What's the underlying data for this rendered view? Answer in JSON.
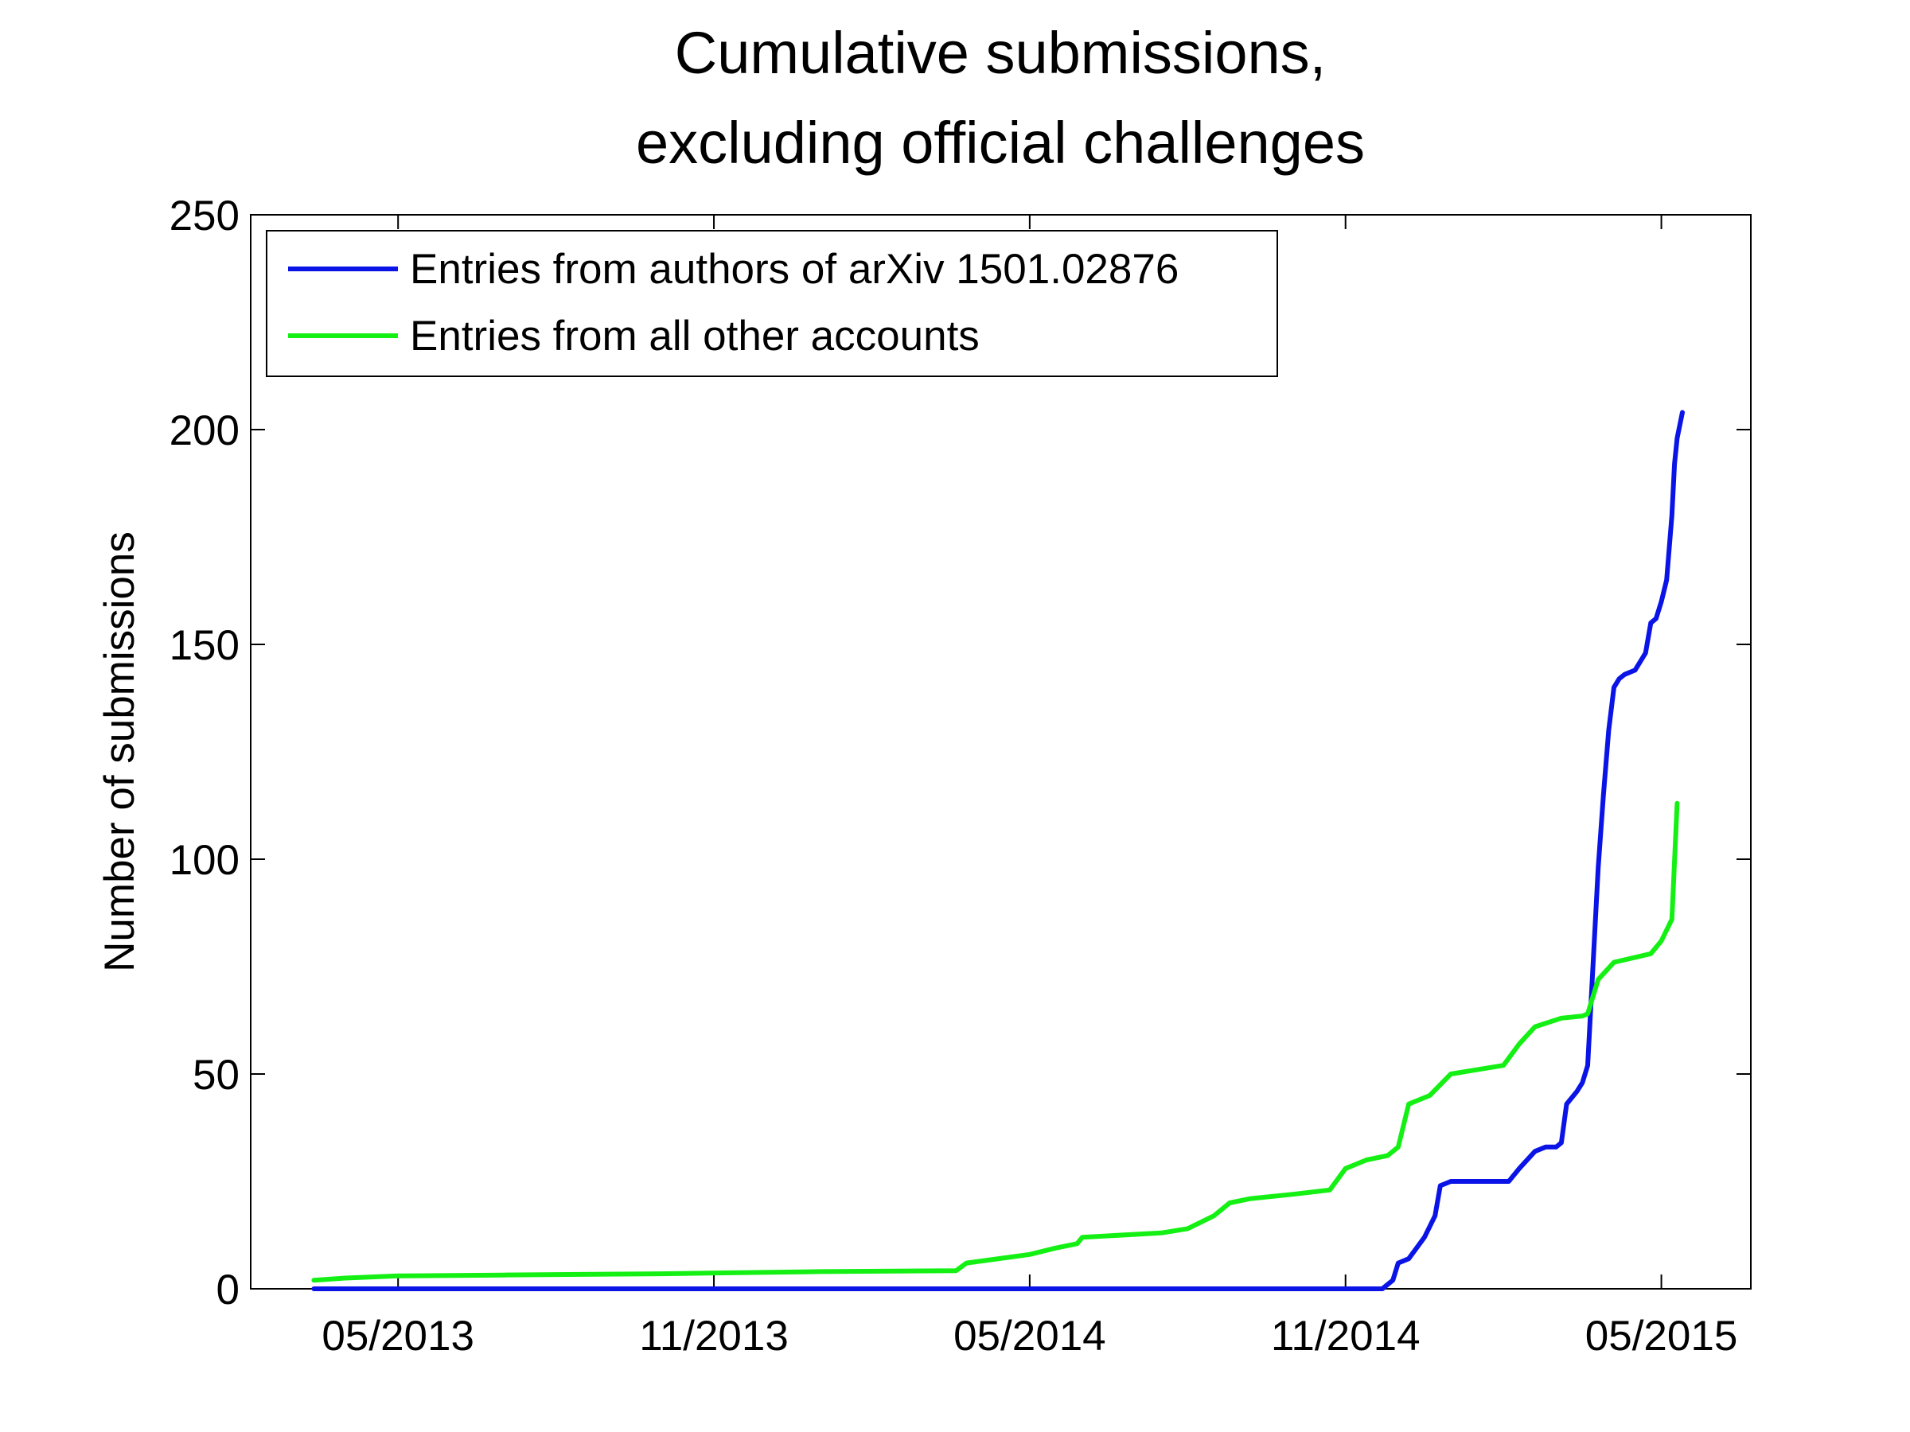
{
  "chart_data": {
    "type": "line",
    "title": [
      "Cumulative submissions,",
      "excluding official challenges"
    ],
    "xlabel": "",
    "ylabel": "Number of submissions",
    "x_unit": "months since 01/2013",
    "xlim": [
      1.2,
      29.7
    ],
    "ylim": [
      0,
      250
    ],
    "yticks": [
      0,
      50,
      100,
      150,
      200,
      250
    ],
    "xticks": [
      {
        "value": 4,
        "label": "05/2013"
      },
      {
        "value": 10,
        "label": "11/2013"
      },
      {
        "value": 16,
        "label": "05/2014"
      },
      {
        "value": 22,
        "label": "11/2014"
      },
      {
        "value": 28,
        "label": "05/2015"
      }
    ],
    "legend": {
      "location": "top-left"
    },
    "series": [
      {
        "name": "Entries from authors of arXiv 1501.02876",
        "color": "#0a14e6",
        "x": [
          2.4,
          22.7,
          22.9,
          23.0,
          23.2,
          23.5,
          23.7,
          23.8,
          24.0,
          24.1,
          24.5,
          25.1,
          25.3,
          25.6,
          25.8,
          25.9,
          26.0,
          26.1,
          26.2,
          26.4,
          26.5,
          26.6,
          26.8,
          26.9,
          27.0,
          27.1,
          27.2,
          27.3,
          27.5,
          27.7,
          27.8,
          27.9,
          28.0,
          28.1,
          28.2,
          28.25,
          28.3,
          28.35,
          28.4
        ],
        "y": [
          0,
          0,
          2,
          6,
          7,
          12,
          17,
          24,
          25,
          25,
          25,
          25,
          28,
          32,
          33,
          33,
          33,
          34,
          43,
          46,
          48,
          52,
          98,
          115,
          130,
          140,
          142,
          143,
          144,
          148,
          155,
          156,
          160,
          165,
          180,
          192,
          198,
          201,
          204
        ]
      },
      {
        "name": "Entries from all other accounts",
        "color": "#14f014",
        "x": [
          2.4,
          3.0,
          4.0,
          6.0,
          9.0,
          12.0,
          14.6,
          14.8,
          16.0,
          16.5,
          16.9,
          17.0,
          18.5,
          19.0,
          19.5,
          19.8,
          20.2,
          21.0,
          21.7,
          22.0,
          22.4,
          22.8,
          23.0,
          23.2,
          23.6,
          24.0,
          24.5,
          25.0,
          25.3,
          25.6,
          26.1,
          26.5,
          26.6,
          26.8,
          27.1,
          27.8,
          28.0,
          28.2,
          28.3
        ],
        "y": [
          2,
          2.5,
          3,
          3.2,
          3.5,
          4,
          4.2,
          6,
          8,
          9.5,
          10.5,
          12,
          13,
          14,
          17,
          20,
          21,
          22,
          23,
          28,
          30,
          31,
          33,
          43,
          45,
          50,
          51,
          52,
          57,
          61,
          63,
          63.5,
          64,
          72,
          76,
          78,
          81,
          86,
          113
        ]
      }
    ]
  }
}
